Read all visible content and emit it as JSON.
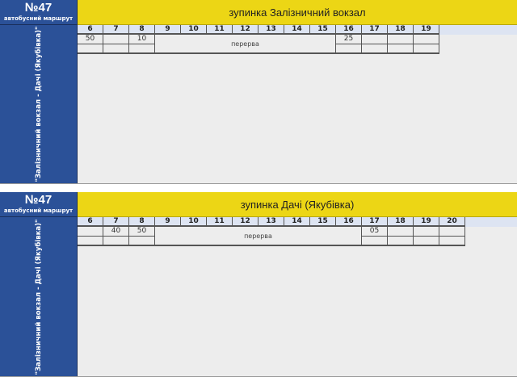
{
  "panels": [
    {
      "route_number": "№47",
      "route_label": "автобусний маршрут",
      "route_name": "\"Залізничний вокзал - Дачі (Якубівка)\"",
      "stop": "зупинка Залізничний вокзал",
      "hours": [
        "6",
        "7",
        "8",
        "9",
        "10",
        "11",
        "12",
        "13",
        "14",
        "15",
        "16",
        "17",
        "18",
        "19"
      ],
      "row1": {
        "6": "50",
        "8": "10",
        "16": "25"
      },
      "break_label": "перерва",
      "break_from": "9",
      "break_to": "15"
    },
    {
      "route_number": "№47",
      "route_label": "автобусний маршрут",
      "route_name": "\"Залізничний вокзал - Дачі (Якубівка)\"",
      "stop": "зупинка Дачі (Якубівка)",
      "hours": [
        "6",
        "7",
        "8",
        "9",
        "10",
        "11",
        "12",
        "13",
        "14",
        "15",
        "16",
        "17",
        "18",
        "19",
        "20"
      ],
      "row1": {
        "7": "40",
        "8": "50",
        "17": "05"
      },
      "break_label": "перерва",
      "break_from": "9",
      "break_to": "16"
    }
  ],
  "colors": {
    "blue": "#2b5198",
    "yellow": "#ecd615",
    "header": "#dde4f2"
  }
}
